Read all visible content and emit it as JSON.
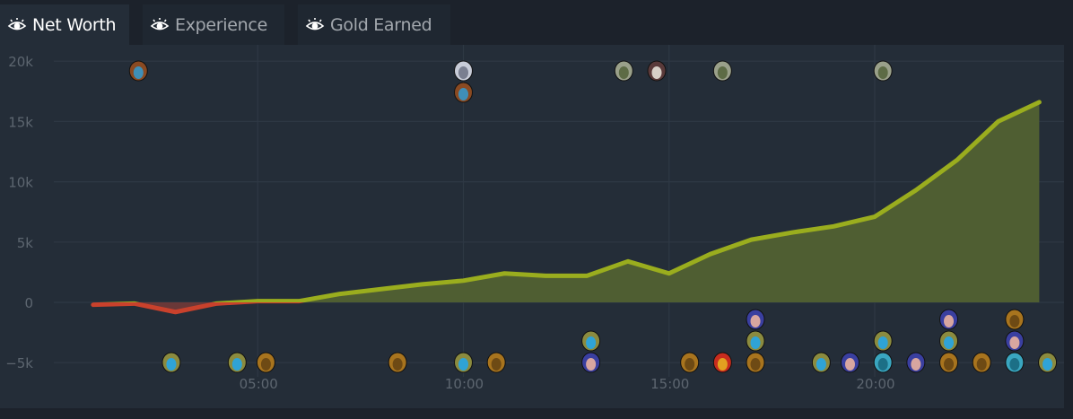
{
  "tabs": [
    {
      "label": "Net Worth",
      "icon": "eye-icon",
      "active": true
    },
    {
      "label": "Experience",
      "icon": "eye-icon",
      "active": false
    },
    {
      "label": "Gold Earned",
      "icon": "eye-icon",
      "active": false
    }
  ],
  "chart_data": {
    "type": "area",
    "title": "",
    "xlabel": "",
    "ylabel": "",
    "x_unit": "minutes",
    "xlim": [
      0,
      24.5
    ],
    "ylim": [
      -5000,
      20000
    ],
    "y_ticks": [
      {
        "value": 20000,
        "label": "20k"
      },
      {
        "value": 15000,
        "label": "15k"
      },
      {
        "value": 10000,
        "label": "10k"
      },
      {
        "value": 5000,
        "label": "5k"
      },
      {
        "value": 0,
        "label": "0"
      },
      {
        "value": -5000,
        "label": "−5k"
      }
    ],
    "x_ticks": [
      {
        "value": 5,
        "label": "05:00"
      },
      {
        "value": 10,
        "label": "10:00"
      },
      {
        "value": 15,
        "label": "15:00"
      },
      {
        "value": 20,
        "label": "20:00"
      }
    ],
    "grid": true,
    "colors": {
      "positive": "#9aad1e",
      "positive_fill": "#4f5e32",
      "negative": "#c9412c",
      "negative_fill": "#6a3838"
    },
    "series": [
      {
        "x": [
          1,
          2,
          3,
          4,
          5,
          6,
          7,
          8,
          9,
          10,
          11,
          12,
          13,
          14,
          15,
          16,
          17,
          18,
          19,
          20,
          21,
          22,
          23,
          24
        ],
        "values": [
          -200,
          -100,
          -800,
          -100,
          100,
          100,
          700,
          1100,
          1500,
          1800,
          2400,
          2200,
          2200,
          3400,
          2400,
          4000,
          5200,
          5800,
          6300,
          7100,
          9300,
          11800,
          15000,
          16600
        ]
      }
    ],
    "event_markers": [
      {
        "minute": 2.1,
        "side": "top",
        "hero": "hooded-blue-hero-icon"
      },
      {
        "minute": 10,
        "side": "top",
        "hero": "white-wolf-hero-icon"
      },
      {
        "minute": 10,
        "side": "top",
        "hero": "hooded-blue-hero-icon"
      },
      {
        "minute": 13.9,
        "side": "top",
        "hero": "stone-golem-hero-icon"
      },
      {
        "minute": 14.7,
        "side": "top",
        "hero": "skull-hat-hero-icon"
      },
      {
        "minute": 16.3,
        "side": "top",
        "hero": "stone-golem-hero-icon"
      },
      {
        "minute": 20.2,
        "side": "top",
        "hero": "stone-golem-hero-icon"
      },
      {
        "minute": 2.9,
        "side": "bottom",
        "hero": "blue-face-hat-hero-icon"
      },
      {
        "minute": 4.5,
        "side": "bottom",
        "hero": "blue-face-hat-hero-icon"
      },
      {
        "minute": 5.2,
        "side": "bottom",
        "hero": "gold-tusk-hero-icon"
      },
      {
        "minute": 8.4,
        "side": "bottom",
        "hero": "gold-tusk-hero-icon"
      },
      {
        "minute": 10,
        "side": "bottom",
        "hero": "blue-face-hat-hero-icon"
      },
      {
        "minute": 10.8,
        "side": "bottom",
        "hero": "gold-tusk-hero-icon"
      },
      {
        "minute": 13.1,
        "side": "bottom",
        "hero": "blonde-maiden-hero-icon"
      },
      {
        "minute": 13.1,
        "side": "bottom",
        "hero": "blue-face-hat-hero-icon"
      },
      {
        "minute": 15.5,
        "side": "bottom",
        "hero": "gold-tusk-hero-icon"
      },
      {
        "minute": 16.3,
        "side": "bottom",
        "hero": "red-armor-hero-icon"
      },
      {
        "minute": 17.1,
        "side": "bottom",
        "hero": "gold-tusk-hero-icon"
      },
      {
        "minute": 17.1,
        "side": "bottom",
        "hero": "blue-face-hat-hero-icon"
      },
      {
        "minute": 17.1,
        "side": "bottom",
        "hero": "blonde-maiden-hero-icon"
      },
      {
        "minute": 18.7,
        "side": "bottom",
        "hero": "blue-face-hat-hero-icon"
      },
      {
        "minute": 19.4,
        "side": "bottom",
        "hero": "blonde-maiden-hero-icon"
      },
      {
        "minute": 20.2,
        "side": "bottom",
        "hero": "teal-face-hero-icon"
      },
      {
        "minute": 20.2,
        "side": "bottom",
        "hero": "blue-face-hat-hero-icon"
      },
      {
        "minute": 21,
        "side": "bottom",
        "hero": "blonde-maiden-hero-icon"
      },
      {
        "minute": 21.8,
        "side": "bottom",
        "hero": "gold-tusk-hero-icon"
      },
      {
        "minute": 21.8,
        "side": "bottom",
        "hero": "blue-face-hat-hero-icon"
      },
      {
        "minute": 21.8,
        "side": "bottom",
        "hero": "blonde-maiden-hero-icon"
      },
      {
        "minute": 22.6,
        "side": "bottom",
        "hero": "gold-tusk-hero-icon"
      },
      {
        "minute": 23.4,
        "side": "bottom",
        "hero": "teal-face-hero-icon"
      },
      {
        "minute": 23.4,
        "side": "bottom",
        "hero": "blonde-maiden-hero-icon"
      },
      {
        "minute": 23.4,
        "side": "bottom",
        "hero": "gold-tusk-hero-icon"
      },
      {
        "minute": 24.2,
        "side": "bottom",
        "hero": "blue-face-hat-hero-icon"
      }
    ]
  }
}
